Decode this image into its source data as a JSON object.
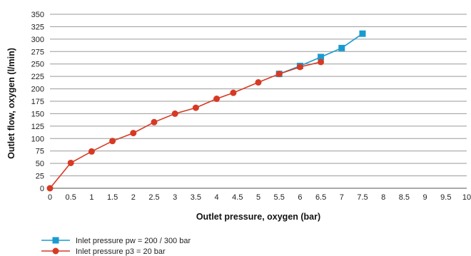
{
  "chart_data": {
    "type": "line",
    "xlabel": "Outlet pressure, oxygen (bar)",
    "ylabel": "Outlet flow, oxygen (l/min)",
    "xlim": [
      0,
      10
    ],
    "ylim": [
      0,
      350
    ],
    "x_ticks": [
      "0",
      "0.5",
      "1",
      "1.5",
      "2",
      "2.5",
      "3",
      "3.5",
      "4",
      "4.5",
      "5",
      "5.5",
      "6",
      "6.5",
      "7",
      "7.5",
      "8",
      "8.5",
      "9",
      "9.5",
      "10"
    ],
    "y_ticks": [
      "0",
      "25",
      "50",
      "75",
      "100",
      "125",
      "150",
      "175",
      "200",
      "225",
      "250",
      "275",
      "300",
      "325",
      "350"
    ],
    "grid": "horizontal",
    "legend_position": "bottom-left",
    "series": [
      {
        "name": "Inlet pressure pw = 200 / 300 bar",
        "color": "#1a9bd0",
        "marker": "square",
        "points": [
          [
            5.5,
            230
          ],
          [
            6,
            246
          ],
          [
            6.5,
            264
          ],
          [
            7,
            282
          ],
          [
            7.5,
            311
          ]
        ]
      },
      {
        "name": "Inlet pressure p3 = 20 bar",
        "color": "#d63a24",
        "marker": "circle",
        "points": [
          [
            0,
            0
          ],
          [
            0.5,
            51
          ],
          [
            1,
            74
          ],
          [
            1.5,
            95
          ],
          [
            2,
            111
          ],
          [
            2.5,
            133
          ],
          [
            3,
            150
          ],
          [
            3.5,
            162
          ],
          [
            4,
            180
          ],
          [
            4.4,
            192
          ],
          [
            5,
            213
          ],
          [
            5.5,
            230
          ],
          [
            6,
            244
          ],
          [
            6.5,
            254
          ]
        ]
      }
    ]
  }
}
